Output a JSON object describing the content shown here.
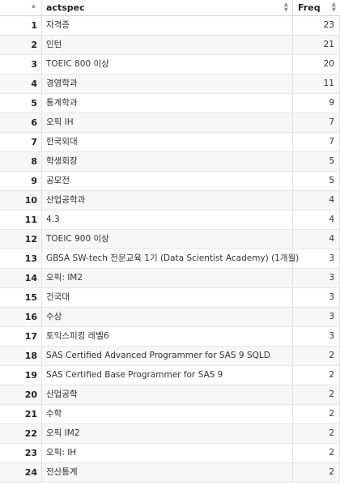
{
  "table": {
    "columns": [
      {
        "label": ""
      },
      {
        "label": "actspec"
      },
      {
        "label": "Freq"
      }
    ],
    "rows": [
      {
        "index": "1",
        "actspec": "자격증",
        "freq": "23"
      },
      {
        "index": "2",
        "actspec": "인턴",
        "freq": "21"
      },
      {
        "index": "3",
        "actspec": "TOEIC 800 이상",
        "freq": "20"
      },
      {
        "index": "4",
        "actspec": "경영학과",
        "freq": "11"
      },
      {
        "index": "5",
        "actspec": " 통계학과",
        "freq": "9"
      },
      {
        "index": "6",
        "actspec": " 오픽 IH",
        "freq": "7"
      },
      {
        "index": "7",
        "actspec": "한국외대",
        "freq": "7"
      },
      {
        "index": "8",
        "actspec": " 학생회장",
        "freq": "5"
      },
      {
        "index": "9",
        "actspec": "공모전",
        "freq": "5"
      },
      {
        "index": "10",
        "actspec": " 산업공학과",
        "freq": "4"
      },
      {
        "index": "11",
        "actspec": "4.3",
        "freq": "4"
      },
      {
        "index": "12",
        "actspec": "TOEIC 900 이상",
        "freq": "4"
      },
      {
        "index": "13",
        "actspec": " GBSA SW-tech 전문교육 1기 (Data Scientist Academy) (1개월)",
        "freq": "3"
      },
      {
        "index": "14",
        "actspec": " 오픽: IM2",
        "freq": "3"
      },
      {
        "index": "15",
        "actspec": " 건국대",
        "freq": "3"
      },
      {
        "index": "16",
        "actspec": " 수상",
        "freq": "3"
      },
      {
        "index": "17",
        "actspec": " 토익스피킹 레벨6",
        "freq": "3"
      },
      {
        "index": "18",
        "actspec": " SAS Certified Advanced Programmer for SAS 9 SQLD",
        "freq": "2"
      },
      {
        "index": "19",
        "actspec": " SAS Certified Base Programmer for SAS 9",
        "freq": "2"
      },
      {
        "index": "20",
        "actspec": " 산업공학",
        "freq": "2"
      },
      {
        "index": "21",
        "actspec": " 수학",
        "freq": "2"
      },
      {
        "index": "22",
        "actspec": " 오픽 IM2",
        "freq": "2"
      },
      {
        "index": "23",
        "actspec": " 오픽: IH",
        "freq": "2"
      },
      {
        "index": "24",
        "actspec": " 전산통계",
        "freq": "2"
      }
    ]
  },
  "colors": {
    "header_border": "#cfcfcf",
    "row_border": "#e6e6e6",
    "stripe": "#f7f7f7",
    "sort_active": "#6e8fb5"
  },
  "icons": {
    "index_sort": "sort-ascending-icon",
    "column_sort": "sort-both-icon"
  }
}
